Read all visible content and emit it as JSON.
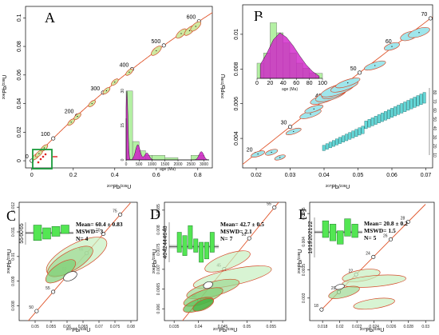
{
  "colors": {
    "concordia": "#e0552b",
    "ellipse_green_fill": "#cfe8a0",
    "ellipse_cyan_fill": "#9fe6ec",
    "ellipse_light_green": "#c7efc0",
    "ellipse_stroke": "#d64b2b",
    "hist_magenta": "#d01fc8",
    "hist_green": "#b4f0a4",
    "box_green": "#2e9a3a",
    "rank_green": "#53e653",
    "rank_cyan": "#63d7d7"
  },
  "chart_data": [
    {
      "panel": "A",
      "type": "scatter",
      "xlabel_parts": [
        "207",
        "Pb/",
        "235",
        "U"
      ],
      "ylabel_parts": [
        "206",
        "Pb/",
        "238",
        "U"
      ],
      "xlim": [
        -0.03,
        0.87
      ],
      "ylim": [
        -0.005,
        0.108
      ],
      "x_ticks": [
        0.0,
        0.2,
        0.4,
        0.6,
        0.8
      ],
      "y_ticks": [
        0.0,
        0.02,
        0.04,
        0.06,
        0.08,
        0.1
      ],
      "concordia_ages": [
        0,
        100,
        200,
        300,
        400,
        500,
        600
      ],
      "ellipses": [
        {
          "x": 0.02,
          "y": 0.003
        },
        {
          "x": 0.035,
          "y": 0.005
        },
        {
          "x": 0.06,
          "y": 0.009
        },
        {
          "x": 0.19,
          "y": 0.027
        },
        {
          "x": 0.22,
          "y": 0.031
        },
        {
          "x": 0.29,
          "y": 0.04
        },
        {
          "x": 0.36,
          "y": 0.049
        },
        {
          "x": 0.4,
          "y": 0.055
        },
        {
          "x": 0.47,
          "y": 0.062
        },
        {
          "x": 0.6,
          "y": 0.077
        },
        {
          "x": 0.72,
          "y": 0.089
        },
        {
          "x": 0.76,
          "y": 0.091
        },
        {
          "x": 0.79,
          "y": 0.094
        }
      ],
      "inset_histogram": {
        "xlabel": "age (Ma)",
        "x_ticks": [
          0,
          500,
          1000,
          1500,
          2000,
          2500,
          3000
        ],
        "y_ticks": [
          0,
          15,
          30
        ],
        "bins": [
          0,
          250,
          500,
          750,
          1000,
          1500,
          2000,
          2500,
          3000
        ],
        "counts": [
          30,
          8,
          4,
          2,
          2,
          1,
          0,
          2
        ],
        "density_peaks": [
          {
            "age": 30,
            "height": 1.0
          },
          {
            "age": 450,
            "height": 0.22
          },
          {
            "age": 800,
            "height": 0.1
          },
          {
            "age": 2900,
            "height": 0.12
          }
        ]
      }
    },
    {
      "panel": "B",
      "type": "scatter",
      "xlabel_parts": [
        "207",
        "Pb/",
        "235",
        "U"
      ],
      "ylabel_parts": [
        "206",
        "Pb/",
        "238",
        "U"
      ],
      "xlim": [
        0.016,
        0.072
      ],
      "ylim": [
        0.0023,
        0.0117
      ],
      "x_ticks": [
        0.02,
        0.03,
        0.04,
        0.05,
        0.06,
        0.07
      ],
      "y_ticks": [
        0.004,
        0.006,
        0.008,
        0.01
      ],
      "concordia_ages": [
        20,
        30,
        40,
        50,
        60,
        70
      ],
      "ellipses": [
        {
          "x": 0.0205,
          "y": 0.0031
        },
        {
          "x": 0.0245,
          "y": 0.0032
        },
        {
          "x": 0.027,
          "y": 0.0029
        },
        {
          "x": 0.031,
          "y": 0.0044
        },
        {
          "x": 0.036,
          "y": 0.0054
        },
        {
          "x": 0.037,
          "y": 0.0057
        },
        {
          "x": 0.04,
          "y": 0.0063
        },
        {
          "x": 0.042,
          "y": 0.0065
        },
        {
          "x": 0.043,
          "y": 0.0066
        },
        {
          "x": 0.044,
          "y": 0.0068
        },
        {
          "x": 0.046,
          "y": 0.007
        },
        {
          "x": 0.047,
          "y": 0.0072
        },
        {
          "x": 0.055,
          "y": 0.0082
        },
        {
          "x": 0.06,
          "y": 0.0093
        },
        {
          "x": 0.065,
          "y": 0.0099
        },
        {
          "x": 0.068,
          "y": 0.0101
        }
      ],
      "inset_histogram": {
        "xlabel": "age (Ma)",
        "x_ticks": [
          0,
          20,
          40,
          60,
          80,
          100
        ],
        "bins": [
          0,
          10,
          20,
          30,
          40,
          50,
          60,
          70,
          80,
          90,
          100
        ],
        "counts": [
          3,
          5,
          11,
          9,
          7,
          5,
          3,
          2,
          1,
          1
        ],
        "density": [
          0.3,
          0.55,
          0.85,
          1.0,
          0.9,
          0.72,
          0.5,
          0.3,
          0.15,
          0.05
        ]
      },
      "rank_plot_ticks": [
        80,
        70,
        60,
        50,
        40,
        30,
        20,
        10
      ],
      "rank_plot_n": 32
    },
    {
      "panel": "C",
      "type": "scatter",
      "xlabel_parts": [
        "207",
        "Pb/",
        "235",
        "U"
      ],
      "ylabel_parts": [
        "206",
        "Pb/",
        "238",
        "U"
      ],
      "xlim": [
        0.045,
        0.082
      ],
      "ylim": [
        0.0074,
        0.0122
      ],
      "x_ticks": [
        0.05,
        0.055,
        0.06,
        0.065,
        0.07,
        0.075,
        0.08
      ],
      "y_ticks": [
        0.008,
        0.009,
        0.01,
        0.011,
        0.012
      ],
      "concordia_ages": [
        50,
        55,
        60,
        65,
        70,
        75,
        80
      ],
      "stats": {
        "mean": "Mean= 60.4 ± 0.83",
        "mswd": "MSWD= 3",
        "n": "N= 4"
      },
      "wm_ticks": [
        55,
        60,
        65
      ],
      "wm_mean": 60.4
    },
    {
      "panel": "D",
      "type": "scatter",
      "xlabel_parts": [
        "207",
        "Pb/",
        "235",
        "U"
      ],
      "ylabel_parts": [
        "206",
        "Pb/",
        "238",
        "U"
      ],
      "xlim": [
        0.033,
        0.058
      ],
      "ylim": [
        0.0057,
        0.0087
      ],
      "x_ticks": [
        0.035,
        0.04,
        0.045,
        0.05,
        0.055
      ],
      "y_ticks": [
        0.006,
        0.0065,
        0.007,
        0.0075,
        0.008,
        0.0085
      ],
      "concordia_ages": [
        40,
        45,
        50,
        55
      ],
      "stats": {
        "mean": "Mean= 42.7 ± 0.5",
        "mswd": "MSWD= 2.1",
        "n": "N= 7"
      },
      "wm_ticks": [
        40,
        42,
        44,
        46,
        48
      ],
      "wm_mean": 42.7
    },
    {
      "panel": "E",
      "type": "scatter",
      "xlabel_parts": [
        "207",
        "Pb/",
        "235",
        "U"
      ],
      "ylabel_parts": [
        "206",
        "Pb/",
        "238",
        "U"
      ],
      "xlim": [
        0.0165,
        0.031
      ],
      "ylim": [
        0.0026,
        0.0047
      ],
      "x_ticks": [
        0.018,
        0.02,
        0.022,
        0.024,
        0.026,
        0.028,
        0.03
      ],
      "y_ticks": [
        0.003,
        0.0035,
        0.004,
        0.0045
      ],
      "concordia_ages": [
        18,
        20,
        22,
        24,
        26,
        28
      ],
      "stats": {
        "mean": "Mean= 20.8 ± 0.2",
        "mswd": "MSWD= 1.5",
        "n": "N= 5"
      },
      "wm_ticks": [
        18,
        19,
        20,
        21,
        22
      ],
      "wm_mean": 20.8
    }
  ],
  "labels": {
    "A": "A",
    "B": "B",
    "C": "C",
    "D": "D",
    "E": "E"
  }
}
